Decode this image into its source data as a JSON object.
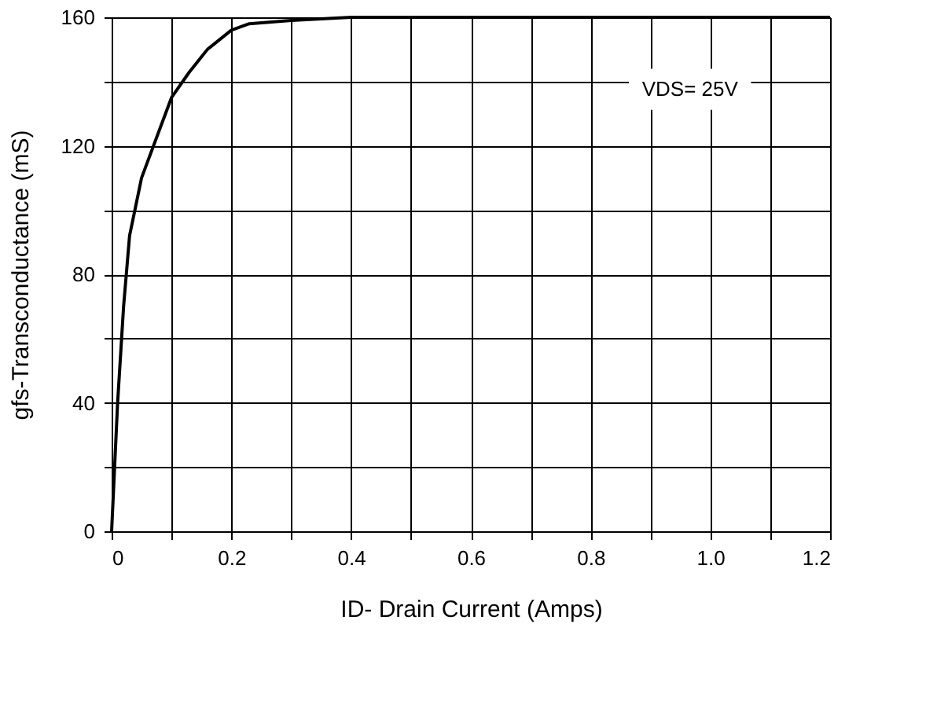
{
  "chart_data": {
    "type": "line",
    "xlabel": "ID- Drain Current (Amps)",
    "ylabel": "gfs-Transconductance (mS)",
    "x": [
      0,
      0.01,
      0.02,
      0.03,
      0.05,
      0.08,
      0.1,
      0.13,
      0.16,
      0.2,
      0.23,
      0.3,
      0.4,
      0.6,
      0.8,
      1.0,
      1.2
    ],
    "series": [
      {
        "color": "#000000",
        "values": [
          0,
          40,
          70,
          92,
          110,
          125,
          135,
          143,
          150,
          156,
          158,
          159,
          160,
          160,
          160,
          160,
          160
        ]
      }
    ],
    "xlim": [
      0,
      1.2
    ],
    "xticks": [
      0,
      {
        "value": 0.1,
        "label": null
      },
      0.2,
      {
        "value": 0.3,
        "label": null
      },
      0.4,
      {
        "value": 0.5,
        "label": null
      },
      0.6,
      {
        "value": 0.7,
        "label": null
      },
      0.8,
      {
        "value": 0.9,
        "label": null
      },
      {
        "value": 1.0,
        "label": "1.0"
      },
      {
        "value": 1.1,
        "label": null
      },
      1.2
    ],
    "ylim": [
      0,
      160
    ],
    "yticks": [
      0,
      {
        "value": 20,
        "label": null
      },
      40,
      {
        "value": 60,
        "label": null
      },
      80,
      {
        "value": 100,
        "label": null
      },
      120,
      {
        "value": 140,
        "label": null
      },
      160
    ],
    "grid": true,
    "marker": "none",
    "line_style": "solid",
    "annotations": [
      "VDS= 25V"
    ]
  }
}
